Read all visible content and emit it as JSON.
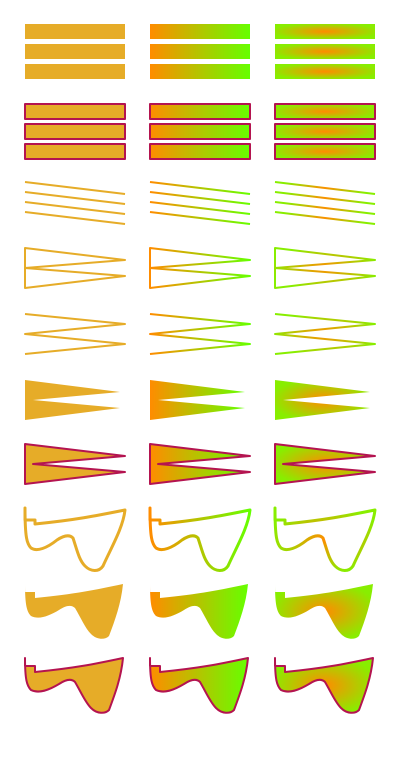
{
  "colors": {
    "solid": "#E6AC28",
    "stroke": "#B41450",
    "gradient_start": "#FF8C00",
    "gradient_end": "#66FF00",
    "radial_center": "#FF8C00",
    "radial_outer": "#88EE00"
  },
  "shape_rows": [
    {
      "name": "rect-bars-filled"
    },
    {
      "name": "rect-bars-filled-stroked"
    },
    {
      "name": "open-zigzag-lines"
    },
    {
      "name": "closed-zigzag-outline"
    },
    {
      "name": "open-zigzag-polyline"
    },
    {
      "name": "zigzag-filled"
    },
    {
      "name": "zigzag-filled-stroked"
    },
    {
      "name": "curve-outline"
    },
    {
      "name": "curve-filled"
    },
    {
      "name": "curve-filled-stroked"
    }
  ],
  "paint_columns": [
    {
      "name": "solid"
    },
    {
      "name": "linear-gradient"
    },
    {
      "name": "radial-gradient"
    }
  ]
}
